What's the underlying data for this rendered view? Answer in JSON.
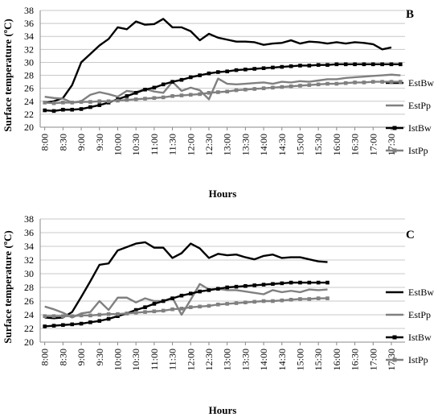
{
  "chart_data": [
    {
      "type": "line",
      "panel_label": "B",
      "xlabel": "Hours",
      "ylabel": "Surface temperature (ºC)",
      "ylim": [
        20,
        38
      ],
      "yticks": [
        20,
        22,
        24,
        26,
        28,
        30,
        32,
        34,
        36,
        38
      ],
      "grid": "horizontal",
      "legend": "right",
      "x": [
        "8:00",
        "8:15",
        "8:30",
        "8:45",
        "9:00",
        "9:15",
        "9:30",
        "9:45",
        "10:00",
        "10:15",
        "10:30",
        "10:45",
        "11:00",
        "11:15",
        "11:30",
        "11:45",
        "12:00",
        "12:15",
        "12:30",
        "12:45",
        "13:00",
        "13:15",
        "13:30",
        "13:45",
        "14:00",
        "14:15",
        "14:30",
        "14:45",
        "15:00",
        "15:15",
        "15:30",
        "15:45",
        "16:00",
        "16:15",
        "16:30",
        "16:45",
        "17:00",
        "17:15",
        "17:30",
        "17:45"
      ],
      "xtick_labels": [
        "8:00",
        "8:30",
        "9:00",
        "9:30",
        "10:00",
        "10:30",
        "11:00",
        "11:30",
        "12:00",
        "12:30",
        "13:00",
        "13:30",
        "14:00",
        "14:30",
        "15:00",
        "15:30",
        "16:00",
        "16:30",
        "17:00",
        "17:30"
      ],
      "series": [
        {
          "name": "EstBw",
          "color": "#000000",
          "marker": "none",
          "values": [
            23.8,
            24.0,
            24.5,
            26.5,
            30.0,
            31.3,
            32.6,
            33.6,
            35.4,
            35.1,
            36.3,
            35.8,
            35.9,
            36.7,
            35.4,
            35.4,
            34.8,
            33.4,
            34.4,
            33.8,
            33.5,
            33.2,
            33.2,
            33.1,
            32.7,
            32.9,
            33.0,
            33.4,
            32.9,
            33.2,
            33.1,
            32.9,
            33.1,
            32.9,
            33.1,
            33.0,
            32.8,
            32.0,
            32.3,
            null
          ]
        },
        {
          "name": "EstPp",
          "color": "#808080",
          "marker": "none",
          "values": [
            24.7,
            24.5,
            24.4,
            23.8,
            24.0,
            25.0,
            25.4,
            25.1,
            24.7,
            25.6,
            25.4,
            25.9,
            25.5,
            25.3,
            27.0,
            25.6,
            26.1,
            25.7,
            24.3,
            27.5,
            26.7,
            26.6,
            26.7,
            26.8,
            26.9,
            26.7,
            27.0,
            26.9,
            27.1,
            27.0,
            27.2,
            27.4,
            27.4,
            27.6,
            27.7,
            27.8,
            27.9,
            28.0,
            28.1,
            28.0
          ]
        },
        {
          "name": "IstBw",
          "color": "#000000",
          "marker": "square",
          "values": [
            22.6,
            22.5,
            22.7,
            22.7,
            22.8,
            23.1,
            23.4,
            23.8,
            24.3,
            24.8,
            25.3,
            25.8,
            26.1,
            26.6,
            27.0,
            27.3,
            27.7,
            28.0,
            28.3,
            28.5,
            28.6,
            28.8,
            28.9,
            29.0,
            29.1,
            29.2,
            29.3,
            29.4,
            29.5,
            29.5,
            29.6,
            29.6,
            29.7,
            29.7,
            29.7,
            29.7,
            29.7,
            29.7,
            29.7,
            29.7
          ]
        },
        {
          "name": "IstPp",
          "color": "#808080",
          "marker": "square",
          "values": [
            23.8,
            23.7,
            23.8,
            23.8,
            23.9,
            23.9,
            24.0,
            24.0,
            24.1,
            24.2,
            24.3,
            24.4,
            24.5,
            24.6,
            24.8,
            24.9,
            25.0,
            25.1,
            25.3,
            25.4,
            25.5,
            25.7,
            25.8,
            25.9,
            26.0,
            26.1,
            26.2,
            26.3,
            26.4,
            26.5,
            26.6,
            26.7,
            26.7,
            26.8,
            26.9,
            26.9,
            27.0,
            27.0,
            27.0,
            27.0
          ]
        }
      ]
    },
    {
      "type": "line",
      "panel_label": "C",
      "xlabel": "Hours",
      "ylabel": "Surface temperature (ºC)",
      "ylim": [
        20,
        38
      ],
      "yticks": [
        20,
        22,
        24,
        26,
        28,
        30,
        32,
        34,
        36,
        38
      ],
      "grid": "horizontal",
      "legend": "right",
      "x": [
        "8:00",
        "8:15",
        "8:30",
        "8:45",
        "9:00",
        "9:15",
        "9:30",
        "9:45",
        "10:00",
        "10:15",
        "10:30",
        "10:45",
        "11:00",
        "11:15",
        "11:30",
        "11:45",
        "12:00",
        "12:15",
        "12:30",
        "12:45",
        "13:00",
        "13:15",
        "13:30",
        "13:45",
        "14:00",
        "14:15",
        "14:30",
        "14:45",
        "15:00",
        "15:15",
        "15:30",
        "15:45",
        "16:00",
        "16:15",
        "16:30",
        "16:45",
        "17:00",
        "17:15",
        "17:30",
        "17:45"
      ],
      "xtick_labels": [
        "8:00",
        "8:30",
        "9:00",
        "9:30",
        "10:00",
        "10:30",
        "11:00",
        "11:30",
        "12:00",
        "12:30",
        "13:00",
        "13:30",
        "14:00",
        "14:30",
        "15:00",
        "15:30",
        "16:00",
        "16:30",
        "17:00",
        "17:30"
      ],
      "series": [
        {
          "name": "EstBw",
          "color": "#000000",
          "marker": "none",
          "values": [
            23.6,
            23.5,
            23.6,
            24.4,
            26.6,
            28.9,
            31.3,
            31.5,
            33.4,
            33.9,
            34.4,
            34.6,
            33.8,
            33.8,
            32.3,
            33.0,
            34.4,
            33.7,
            32.3,
            32.9,
            32.7,
            32.8,
            32.4,
            32.1,
            32.6,
            32.8,
            32.3,
            32.4,
            32.4,
            32.1,
            31.8,
            31.7,
            null,
            null,
            null,
            null,
            null,
            null,
            null,
            null
          ]
        },
        {
          "name": "EstPp",
          "color": "#808080",
          "marker": "none",
          "values": [
            25.2,
            24.8,
            24.3,
            23.6,
            24.2,
            24.4,
            26.0,
            24.7,
            26.5,
            26.5,
            25.8,
            26.4,
            26.0,
            26.0,
            26.5,
            24.0,
            26.2,
            28.5,
            27.7,
            27.8,
            27.6,
            27.6,
            27.4,
            27.2,
            27.0,
            27.6,
            27.3,
            27.5,
            27.3,
            27.7,
            27.6,
            27.7,
            null,
            null,
            null,
            null,
            null,
            null,
            null,
            null
          ]
        },
        {
          "name": "IstBw",
          "color": "#000000",
          "marker": "square",
          "values": [
            22.3,
            22.4,
            22.5,
            22.6,
            22.7,
            22.9,
            23.1,
            23.4,
            23.8,
            24.2,
            24.7,
            25.1,
            25.6,
            26.0,
            26.4,
            26.8,
            27.1,
            27.4,
            27.6,
            27.8,
            28.0,
            28.1,
            28.2,
            28.3,
            28.4,
            28.5,
            28.6,
            28.7,
            28.7,
            28.7,
            28.7,
            28.7,
            null,
            null,
            null,
            null,
            null,
            null,
            null,
            null
          ]
        },
        {
          "name": "IstPp",
          "color": "#808080",
          "marker": "square",
          "values": [
            23.8,
            23.8,
            23.8,
            23.8,
            23.9,
            23.9,
            24.0,
            24.1,
            24.1,
            24.2,
            24.3,
            24.4,
            24.5,
            24.6,
            24.8,
            24.9,
            25.1,
            25.2,
            25.3,
            25.5,
            25.6,
            25.7,
            25.8,
            25.9,
            26.0,
            26.0,
            26.1,
            26.2,
            26.3,
            26.3,
            26.4,
            26.4,
            null,
            null,
            null,
            null,
            null,
            null,
            null,
            null
          ]
        }
      ]
    }
  ]
}
